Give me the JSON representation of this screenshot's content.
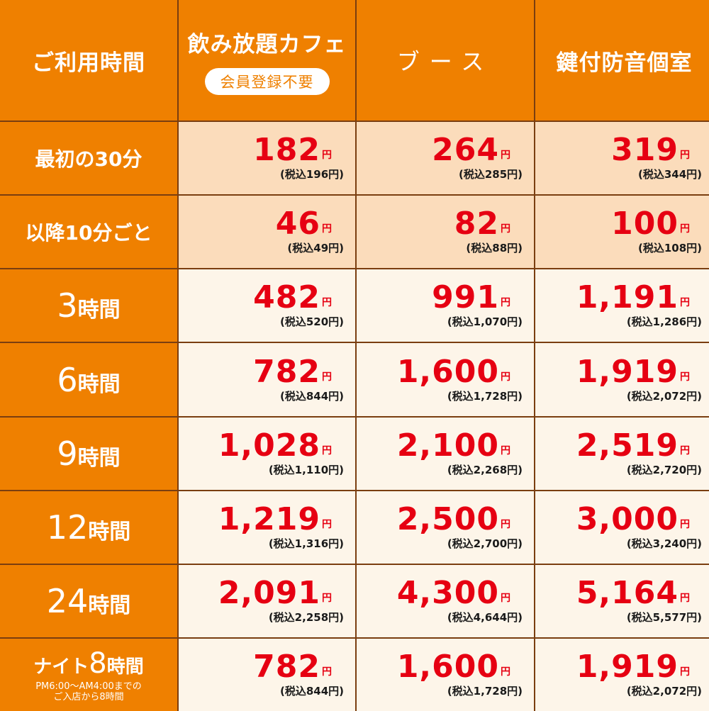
{
  "header": {
    "col0": "ご利用時間",
    "col1": "飲み放題カフェ",
    "col1_badge": "会員登録不要",
    "col2": "ブース",
    "col3": "鍵付防音個室"
  },
  "yen": "円",
  "rows": [
    {
      "label": "最初の30分",
      "cells": [
        {
          "price": "182",
          "tax": "(税込196円)"
        },
        {
          "price": "264",
          "tax": "(税込285円)"
        },
        {
          "price": "319",
          "tax": "(税込344円)"
        }
      ]
    },
    {
      "label": "以降10分ごと",
      "cells": [
        {
          "price": "46",
          "tax": "(税込49円)"
        },
        {
          "price": "82",
          "tax": "(税込88円)"
        },
        {
          "price": "100",
          "tax": "(税込108円)"
        }
      ]
    },
    {
      "label_num": "3",
      "label_unit": "時間",
      "cells": [
        {
          "price": "482",
          "tax": "(税込520円)"
        },
        {
          "price": "991",
          "tax": "(税込1,070円)"
        },
        {
          "price": "1,191",
          "tax": "(税込1,286円)"
        }
      ]
    },
    {
      "label_num": "6",
      "label_unit": "時間",
      "cells": [
        {
          "price": "782",
          "tax": "(税込844円)"
        },
        {
          "price": "1,600",
          "tax": "(税込1,728円)"
        },
        {
          "price": "1,919",
          "tax": "(税込2,072円)"
        }
      ]
    },
    {
      "label_num": "9",
      "label_unit": "時間",
      "cells": [
        {
          "price": "1,028",
          "tax": "(税込1,110円)"
        },
        {
          "price": "2,100",
          "tax": "(税込2,268円)"
        },
        {
          "price": "2,519",
          "tax": "(税込2,720円)"
        }
      ]
    },
    {
      "label_num": "12",
      "label_unit": "時間",
      "cells": [
        {
          "price": "1,219",
          "tax": "(税込1,316円)"
        },
        {
          "price": "2,500",
          "tax": "(税込2,700円)"
        },
        {
          "price": "3,000",
          "tax": "(税込3,240円)"
        }
      ]
    },
    {
      "label_num": "24",
      "label_unit": "時間",
      "cells": [
        {
          "price": "2,091",
          "tax": "(税込2,258円)"
        },
        {
          "price": "4,300",
          "tax": "(税込4,644円)"
        },
        {
          "price": "5,164",
          "tax": "(税込5,577円)"
        }
      ]
    },
    {
      "label_pre": "ナイト",
      "label_num": "8",
      "label_unit": "時間",
      "note1": "PM6:00～AM4:00までの",
      "note2": "ご入店から8時間",
      "cells": [
        {
          "price": "782",
          "tax": "(税込844円)"
        },
        {
          "price": "1,600",
          "tax": "(税込1,728円)"
        },
        {
          "price": "1,919",
          "tax": "(税込2,072円)"
        }
      ]
    }
  ],
  "colors": {
    "header_bg": "#ef8000",
    "price_red": "#e60012",
    "row_light_orange": "#fbdcbb",
    "row_cream": "#fdf5e9",
    "grid_line": "#7a3e10"
  }
}
